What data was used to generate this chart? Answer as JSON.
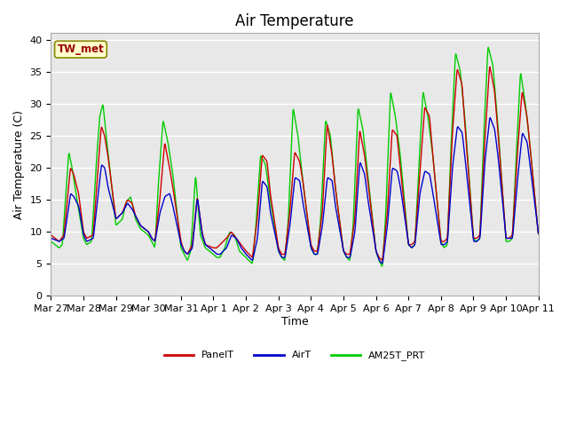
{
  "title": "Air Temperature",
  "xlabel": "Time",
  "ylabel": "Air Temperature (C)",
  "ylim": [
    0,
    41
  ],
  "yticks": [
    0,
    5,
    10,
    15,
    20,
    25,
    30,
    35,
    40
  ],
  "x_tick_labels": [
    "Mar 27",
    "Mar 28",
    "Mar 29",
    "Mar 30",
    "Mar 31",
    "Apr 1",
    "Apr 2",
    "Apr 3",
    "Apr 4",
    "Apr 5",
    "Apr 6",
    "Apr 7",
    "Apr 8",
    "Apr 9",
    "Apr 10",
    "Apr 11"
  ],
  "bg_color": "#e8e8e8",
  "fig_color": "#ffffff",
  "site_label": "TW_met",
  "legend_labels": [
    "PanelT",
    "AirT",
    "AM25T_PRT"
  ],
  "legend_colors": [
    "#cc0000",
    "#0000cc",
    "#00cc00"
  ],
  "line_width": 1.0,
  "title_fontsize": 12,
  "axis_fontsize": 9,
  "tick_fontsize": 8
}
